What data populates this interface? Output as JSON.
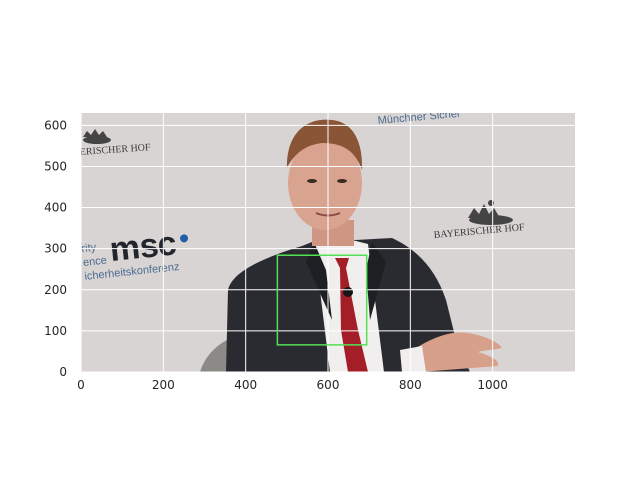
{
  "chart_data": {
    "type": "image",
    "title": "",
    "xlabel": "",
    "ylabel": "",
    "xlim": [
      0,
      1200
    ],
    "ylim": [
      630,
      0
    ],
    "x_ticks": [
      0,
      200,
      400,
      600,
      800,
      1000
    ],
    "y_ticks": [
      0,
      100,
      200,
      300,
      400,
      500,
      600
    ],
    "grid": true,
    "annotations": [
      {
        "type": "rectangle",
        "label": "face-detection-box",
        "x0": 477,
        "y0": 66,
        "x1": 694,
        "y1": 284,
        "color": "#55e055"
      }
    ]
  },
  "photo": {
    "backdrop_texts": [
      "Münchner Sicher",
      "ERISCHER HOF",
      "BAYERISCHER HOF",
      "rity",
      "ence",
      "icherheitskonferenz"
    ],
    "brand": {
      "m": "m",
      "s": "s",
      "c": "c"
    }
  },
  "colors": {
    "backdrop": "#d9d4d4",
    "grid": "#ffffff",
    "box": "#55e055",
    "suit": "#2a2b30",
    "tie": "#a31e26",
    "skin": "#d9a48f",
    "hair": "#8a5436"
  }
}
